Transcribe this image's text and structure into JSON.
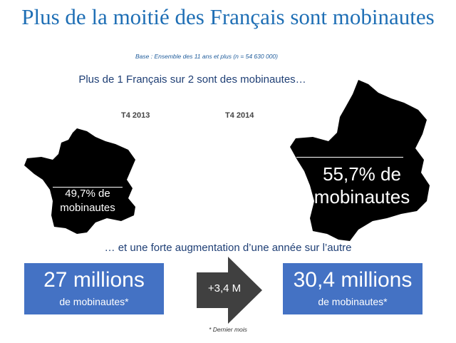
{
  "title": "Plus de la moitié des Français sont mobinautes",
  "base_note": "Base : Ensemble des 11 ans et plus (n = 54 630 000)",
  "subtitle_top": "Plus de 1 Français sur 2 sont des mobinautes…",
  "maps": {
    "left": {
      "year": "T4 2013",
      "pct_line1": "49,7% de",
      "pct_line2": "mobinautes",
      "value_percent": 49.7
    },
    "right": {
      "year": "T4 2014",
      "pct_line1": "55,7% de",
      "pct_line2": "mobinautes",
      "value_percent": 55.7
    }
  },
  "subtitle_bottom": "… et une forte augmentation d’une année  sur l’autre",
  "boxes": {
    "left": {
      "big": "27 millions",
      "small": "de mobinautes*"
    },
    "right": {
      "big": "30,4 millions",
      "small": "de mobinautes*"
    }
  },
  "arrow_label": "+3,4 M",
  "footnote": "* Dernier mois",
  "colors": {
    "title": "#1f6fb5",
    "box": "#4472c4",
    "arrow": "#404040",
    "text_dark": "#1f3f75"
  }
}
